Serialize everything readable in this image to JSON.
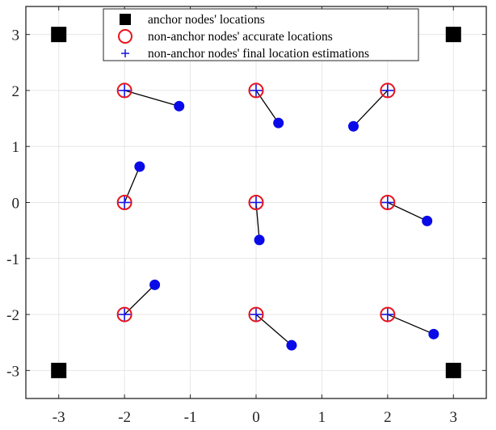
{
  "chart_data": {
    "type": "scatter",
    "title": "",
    "xlabel": "",
    "ylabel": "",
    "xlim": [
      -3.5,
      3.5
    ],
    "ylim": [
      -3.5,
      3.5
    ],
    "xticks": [
      -3,
      -2,
      -1,
      0,
      1,
      2,
      3
    ],
    "yticks": [
      -3,
      -2,
      -1,
      0,
      1,
      2,
      3
    ],
    "xtick_labels": [
      "-3",
      "-2",
      "-1",
      "0",
      "1",
      "2",
      "3"
    ],
    "ytick_labels": [
      "-3",
      "-2",
      "-1",
      "0",
      "1",
      "2",
      "3"
    ],
    "grid": true,
    "legend_position": "top-center",
    "colors": {
      "anchor": "#000000",
      "accurate": "#e8131b",
      "estimate": "#1414e6",
      "error_point": "#0a0ae8",
      "error_line": "#000000",
      "grid": "#e6e6e6"
    },
    "series": [
      {
        "name": "anchor nodes' locations",
        "marker": "square",
        "points": [
          [
            -3,
            3
          ],
          [
            3,
            3
          ],
          [
            -3,
            -3
          ],
          [
            3,
            -3
          ]
        ]
      },
      {
        "name": "non-anchor nodes' accurate locations",
        "marker": "circle-open",
        "points": [
          [
            -2,
            2
          ],
          [
            0,
            2
          ],
          [
            2,
            2
          ],
          [
            -2,
            0
          ],
          [
            0,
            0
          ],
          [
            2,
            0
          ],
          [
            -2,
            -2
          ],
          [
            0,
            -2
          ],
          [
            2,
            -2
          ]
        ]
      },
      {
        "name": "non-anchor nodes' final location estimations",
        "marker": "plus",
        "points": [
          [
            -2,
            2
          ],
          [
            0,
            2
          ],
          [
            2,
            2
          ],
          [
            -2,
            0
          ],
          [
            0,
            0
          ],
          [
            2,
            0
          ],
          [
            -2,
            -2
          ],
          [
            0,
            -2
          ],
          [
            2,
            -2
          ]
        ]
      }
    ],
    "error_points": [
      [
        -1.17,
        1.72
      ],
      [
        0.34,
        1.42
      ],
      [
        1.48,
        1.36
      ],
      [
        -1.77,
        0.64
      ],
      [
        0.05,
        -0.67
      ],
      [
        2.6,
        -0.33
      ],
      [
        -1.54,
        -1.47
      ],
      [
        0.54,
        -2.55
      ],
      [
        2.7,
        -2.35
      ]
    ],
    "error_lines": [
      {
        "from": [
          -2,
          2
        ],
        "to": [
          -1.17,
          1.72
        ]
      },
      {
        "from": [
          0,
          2
        ],
        "to": [
          0.34,
          1.42
        ]
      },
      {
        "from": [
          2,
          2
        ],
        "to": [
          1.48,
          1.36
        ]
      },
      {
        "from": [
          -2,
          0
        ],
        "to": [
          -1.77,
          0.64
        ]
      },
      {
        "from": [
          0,
          0
        ],
        "to": [
          0.05,
          -0.67
        ]
      },
      {
        "from": [
          2,
          0
        ],
        "to": [
          2.6,
          -0.33
        ]
      },
      {
        "from": [
          -2,
          -2
        ],
        "to": [
          -1.54,
          -1.47
        ]
      },
      {
        "from": [
          0,
          -2
        ],
        "to": [
          0.54,
          -2.55
        ]
      },
      {
        "from": [
          2,
          -2
        ],
        "to": [
          2.7,
          -2.35
        ]
      }
    ],
    "legend": [
      {
        "label": "anchor nodes' locations",
        "marker": "square"
      },
      {
        "label": "non-anchor nodes' accurate locations",
        "marker": "circle-open"
      },
      {
        "label": "non-anchor nodes' final location estimations",
        "marker": "plus"
      }
    ]
  }
}
